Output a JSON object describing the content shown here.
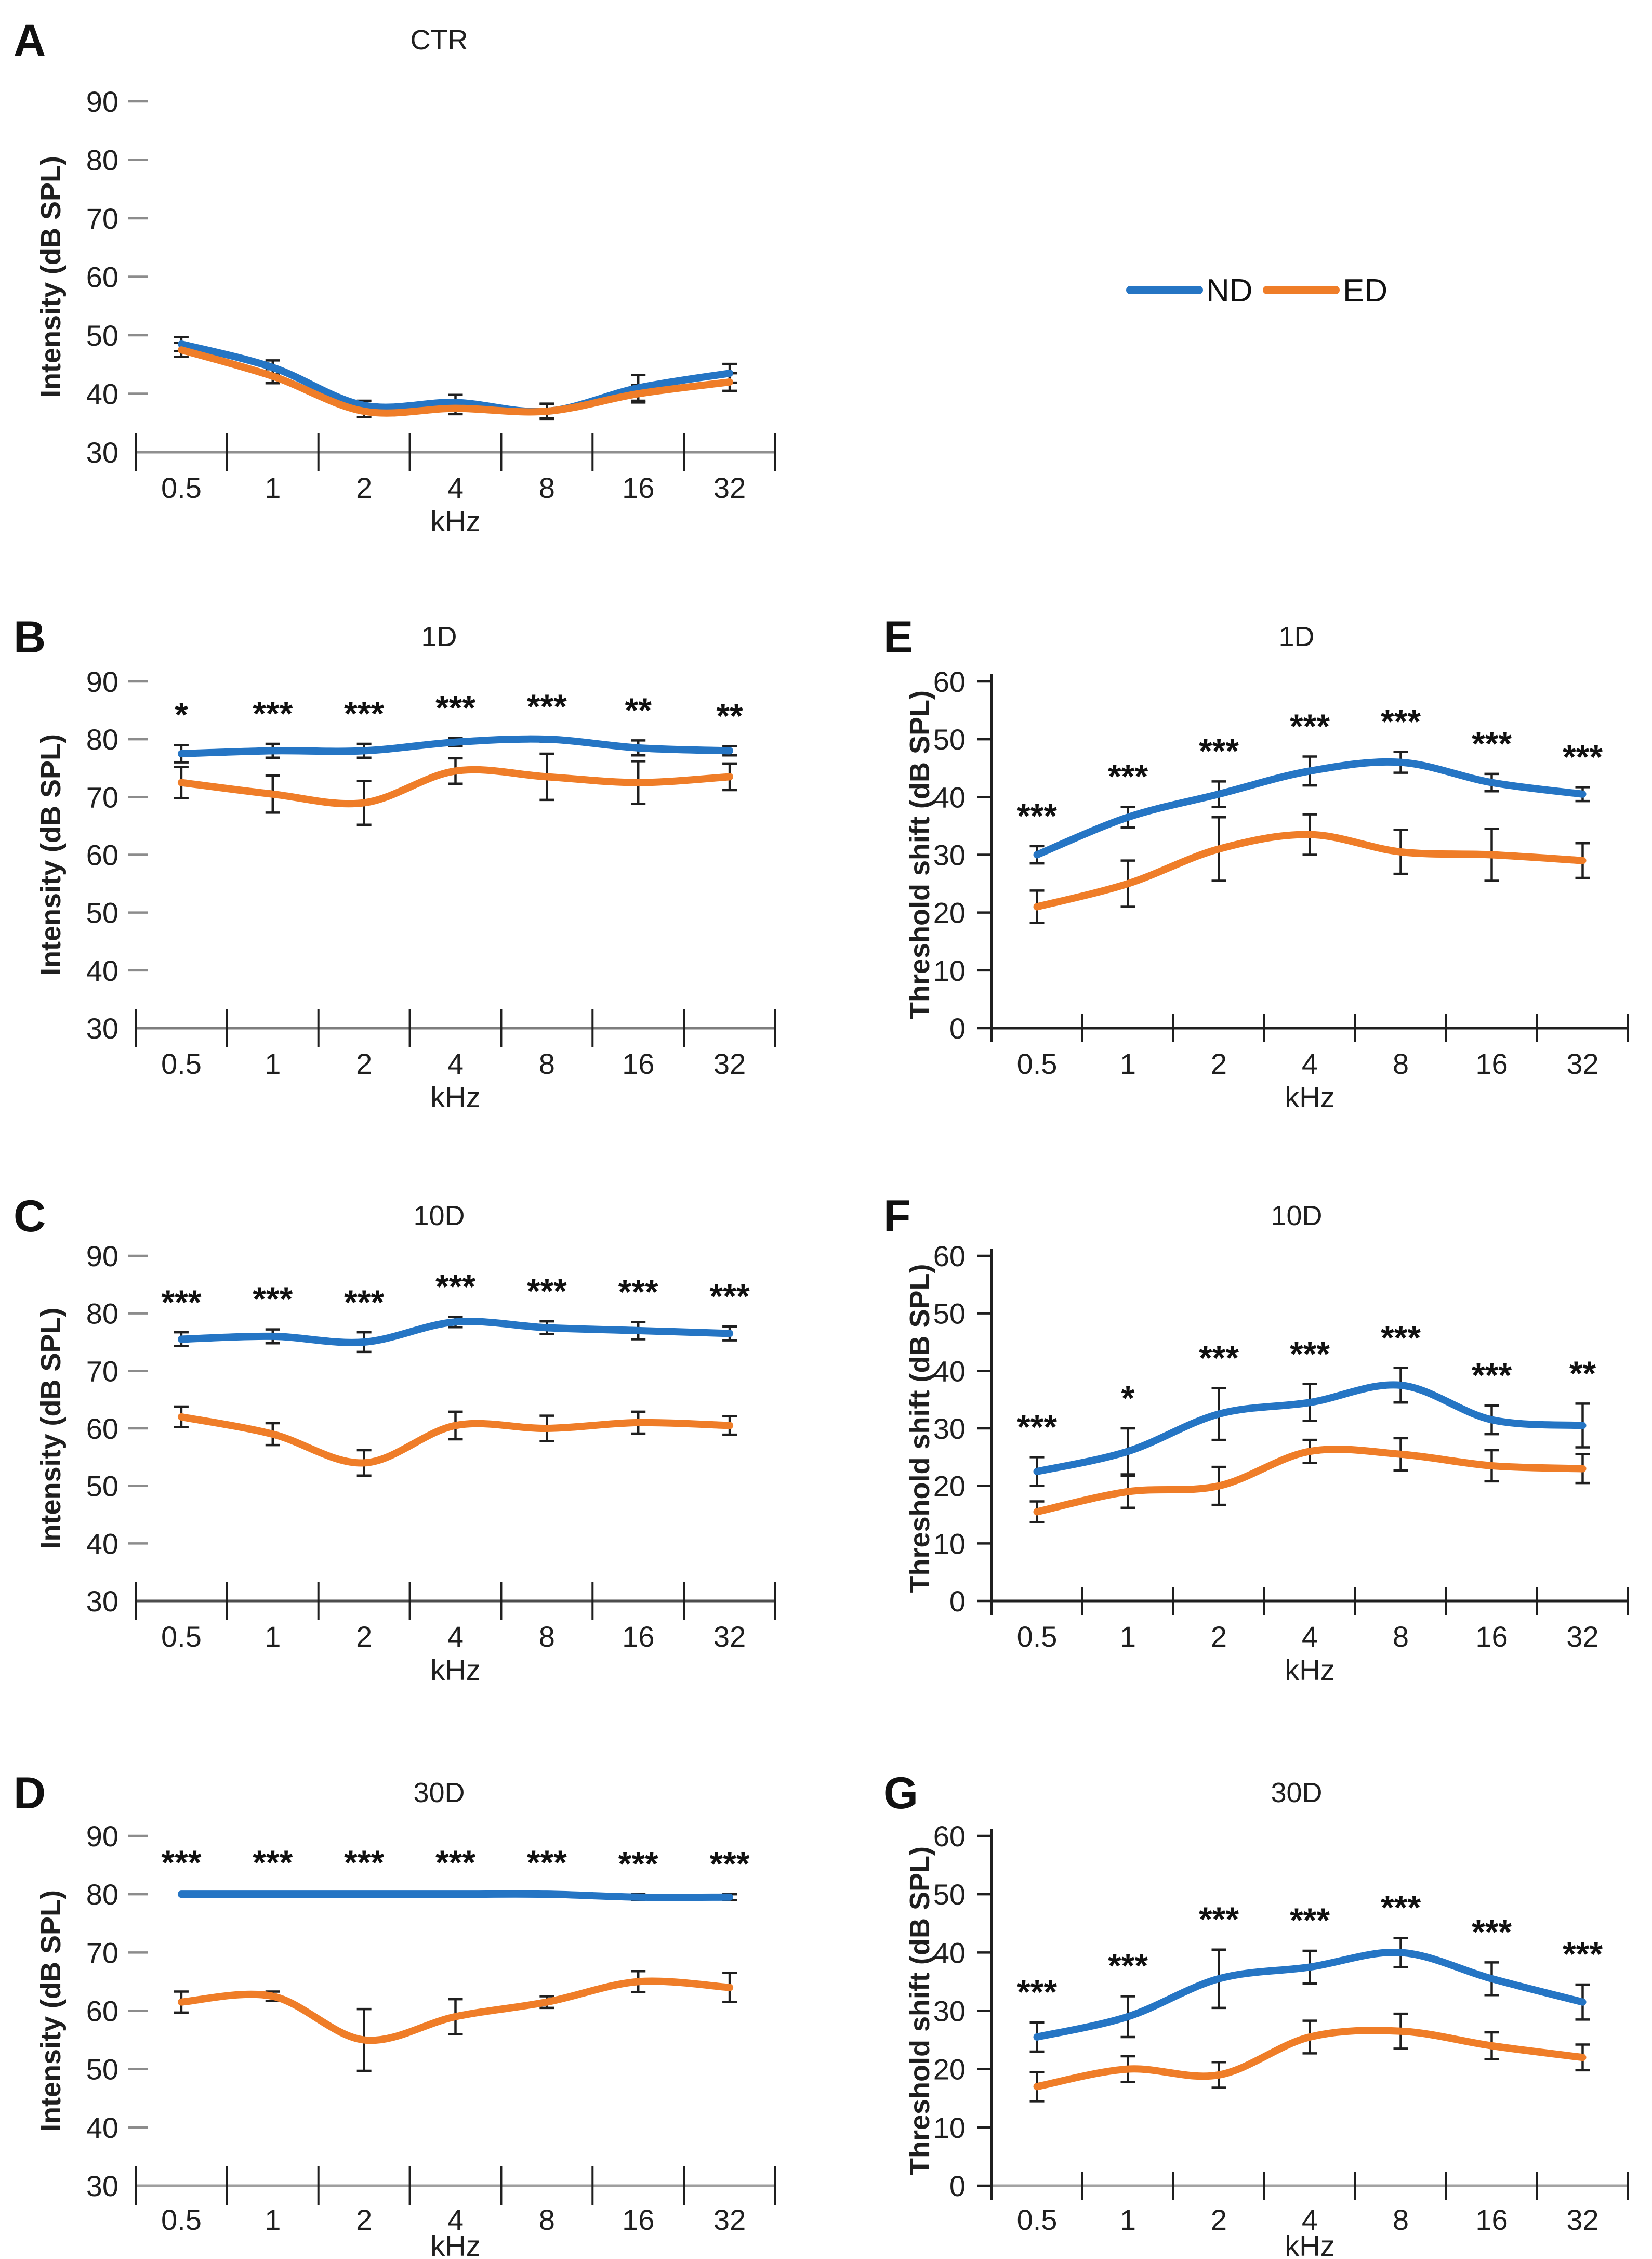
{
  "legend": {
    "items": [
      {
        "label": "ND",
        "color": "#2575C4"
      },
      {
        "label": "ED",
        "color": "#EF7D28"
      }
    ]
  },
  "colors": {
    "nd": "#2575C4",
    "ed": "#EF7D28",
    "error_bar": "#1f1f1f",
    "text": "#1f1f1f"
  },
  "x_axis_label": "kHz",
  "chart_data": [
    {
      "id": "A",
      "panel_letter": "A",
      "type": "line",
      "title": "CTR",
      "xlabel": "kHz",
      "ylabel": "Intensity (dB SPL)",
      "ylim": [
        30,
        90
      ],
      "yticks": [
        30,
        40,
        50,
        60,
        70,
        80,
        90
      ],
      "categories": [
        "0.5",
        "1",
        "2",
        "4",
        "8",
        "16",
        "32"
      ],
      "series": [
        {
          "name": "ND",
          "values": [
            48.5,
            44.5,
            38,
            38.5,
            37,
            41,
            43.5
          ],
          "errors": [
            1.2,
            1.2,
            0.8,
            1.3,
            1.2,
            2.2,
            1.6
          ]
        },
        {
          "name": "ED",
          "values": [
            47.5,
            43,
            37,
            37.5,
            37,
            40,
            42
          ],
          "errors": [
            1.2,
            1.2,
            1.0,
            1.0,
            1.3,
            1.5,
            1.5
          ]
        }
      ],
      "significance": [
        "",
        "",
        "",
        "",
        "",
        "",
        ""
      ]
    },
    {
      "id": "B",
      "panel_letter": "B",
      "type": "line",
      "title": "1D",
      "xlabel": "kHz",
      "ylabel": "Intensity (dB SPL)",
      "ylim": [
        30,
        90
      ],
      "yticks": [
        30,
        40,
        50,
        60,
        70,
        80,
        90
      ],
      "categories": [
        "0.5",
        "1",
        "2",
        "4",
        "8",
        "16",
        "32"
      ],
      "series": [
        {
          "name": "ND",
          "values": [
            77.5,
            78,
            78,
            79.5,
            80,
            78.5,
            78
          ],
          "errors": [
            1.5,
            1.2,
            1.2,
            0.7,
            0.4,
            1.3,
            0.8
          ]
        },
        {
          "name": "ED",
          "values": [
            72.5,
            70.5,
            69,
            74.5,
            73.5,
            72.5,
            73.5
          ],
          "errors": [
            2.7,
            3.2,
            3.8,
            2.2,
            4.0,
            3.7,
            2.3
          ]
        }
      ],
      "significance": [
        "*",
        "***",
        "***",
        "***",
        "***",
        "**",
        "**"
      ]
    },
    {
      "id": "C",
      "panel_letter": "C",
      "type": "line",
      "title": "10D",
      "xlabel": "kHz",
      "ylabel": "Intensity (dB SPL)",
      "ylim": [
        30,
        90
      ],
      "yticks": [
        30,
        40,
        50,
        60,
        70,
        80,
        90
      ],
      "categories": [
        "0.5",
        "1",
        "2",
        "4",
        "8",
        "16",
        "32"
      ],
      "series": [
        {
          "name": "ND",
          "values": [
            75.5,
            76,
            75,
            78.5,
            77.5,
            77,
            76.5
          ],
          "errors": [
            1.2,
            1.2,
            1.7,
            0.9,
            1.1,
            1.5,
            1.2
          ]
        },
        {
          "name": "ED",
          "values": [
            62,
            59,
            54,
            60.5,
            60,
            61,
            60.5
          ],
          "errors": [
            1.8,
            1.9,
            2.2,
            2.4,
            2.2,
            1.9,
            1.6
          ]
        }
      ],
      "significance": [
        "***",
        "***",
        "***",
        "***",
        "***",
        "***",
        "***"
      ]
    },
    {
      "id": "D",
      "panel_letter": "D",
      "type": "line",
      "title": "30D",
      "xlabel": "kHz",
      "ylabel": "Intensity (dB SPL)",
      "ylim": [
        30,
        90
      ],
      "yticks": [
        30,
        40,
        50,
        60,
        70,
        80,
        90
      ],
      "categories": [
        "0.5",
        "1",
        "2",
        "4",
        "8",
        "16",
        "32"
      ],
      "series": [
        {
          "name": "ND",
          "values": [
            80,
            80,
            80,
            80,
            80,
            79.5,
            79.5
          ],
          "errors": [
            0.2,
            0.2,
            0.2,
            0.2,
            0.2,
            0.5,
            0.5
          ]
        },
        {
          "name": "ED",
          "values": [
            61.5,
            62.5,
            55,
            59,
            61.5,
            65,
            64
          ],
          "errors": [
            1.8,
            0.8,
            5.3,
            3.0,
            1.0,
            1.8,
            2.5
          ]
        }
      ],
      "significance": [
        "***",
        "***",
        "***",
        "***",
        "***",
        "***",
        "***"
      ]
    },
    {
      "id": "E",
      "panel_letter": "E",
      "type": "line",
      "title": "1D",
      "xlabel": "kHz",
      "ylabel": "Threshold shift (dB SPL)",
      "ylim": [
        0,
        60
      ],
      "yticks": [
        0,
        10,
        20,
        30,
        40,
        50,
        60
      ],
      "categories": [
        "0.5",
        "1",
        "2",
        "4",
        "8",
        "16",
        "32"
      ],
      "series": [
        {
          "name": "ND",
          "values": [
            30,
            36.5,
            40.5,
            44.5,
            46,
            42.5,
            40.5
          ],
          "errors": [
            1.5,
            1.8,
            2.2,
            2.5,
            1.8,
            1.5,
            1.2
          ]
        },
        {
          "name": "ED",
          "values": [
            21,
            25,
            31,
            33.5,
            30.5,
            30,
            29
          ],
          "errors": [
            2.8,
            4.0,
            5.5,
            3.5,
            3.8,
            4.5,
            3.0
          ]
        }
      ],
      "significance": [
        "***",
        "***",
        "***",
        "***",
        "***",
        "***",
        "***"
      ]
    },
    {
      "id": "F",
      "panel_letter": "F",
      "type": "line",
      "title": "10D",
      "xlabel": "kHz",
      "ylabel": "Threshold shift (dB SPL)",
      "ylim": [
        0,
        60
      ],
      "yticks": [
        0,
        10,
        20,
        30,
        40,
        50,
        60
      ],
      "categories": [
        "0.5",
        "1",
        "2",
        "4",
        "8",
        "16",
        "32"
      ],
      "series": [
        {
          "name": "ND",
          "values": [
            22.5,
            26,
            32.5,
            34.5,
            37.5,
            31.5,
            30.5
          ],
          "errors": [
            2.5,
            4.0,
            4.5,
            3.2,
            3.0,
            2.5,
            3.8
          ]
        },
        {
          "name": "ED",
          "values": [
            15.5,
            19,
            20,
            26,
            25.5,
            23.5,
            23
          ],
          "errors": [
            1.8,
            2.8,
            3.3,
            2.0,
            2.8,
            2.7,
            2.5
          ]
        }
      ],
      "significance": [
        "***",
        "*",
        "***",
        "***",
        "***",
        "***",
        "**"
      ]
    },
    {
      "id": "G",
      "panel_letter": "G",
      "type": "line",
      "title": "30D",
      "xlabel": "kHz",
      "ylabel": "Threshold shift (dB SPL)",
      "ylim": [
        0,
        60
      ],
      "yticks": [
        0,
        10,
        20,
        30,
        40,
        50,
        60
      ],
      "categories": [
        "0.5",
        "1",
        "2",
        "4",
        "8",
        "16",
        "32"
      ],
      "series": [
        {
          "name": "ND",
          "values": [
            25.5,
            29,
            35.5,
            37.5,
            40,
            35.5,
            31.5
          ],
          "errors": [
            2.5,
            3.5,
            5.0,
            2.8,
            2.5,
            2.8,
            3.0
          ]
        },
        {
          "name": "ED",
          "values": [
            17,
            20,
            19,
            25.5,
            26.5,
            24,
            22
          ],
          "errors": [
            2.5,
            2.2,
            2.2,
            2.8,
            3.0,
            2.3,
            2.2
          ]
        }
      ],
      "significance": [
        "***",
        "***",
        "***",
        "***",
        "***",
        "***",
        "***"
      ]
    }
  ]
}
